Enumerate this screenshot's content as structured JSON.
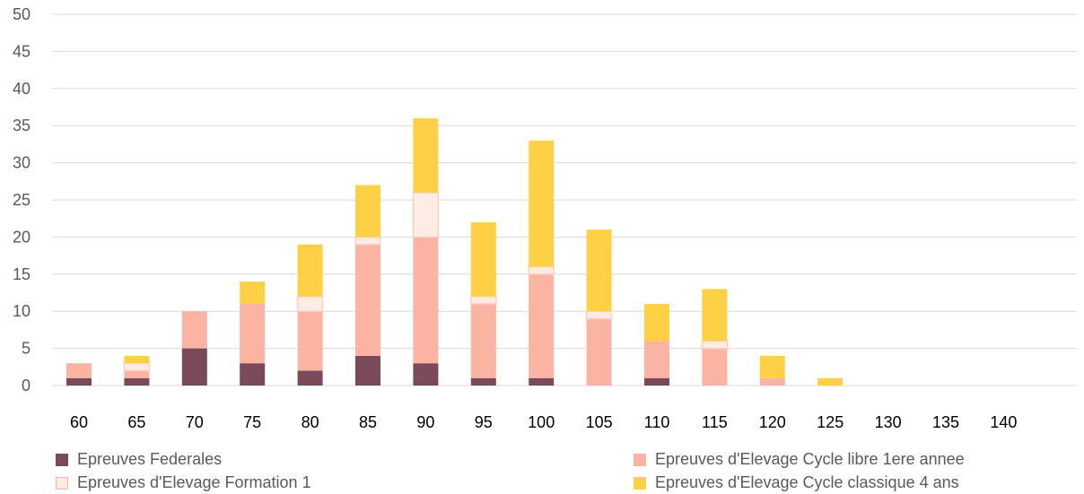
{
  "chart_data": {
    "type": "bar",
    "stacked": true,
    "categories": [
      "60",
      "65",
      "70",
      "75",
      "80",
      "85",
      "90",
      "95",
      "100",
      "105",
      "110",
      "115",
      "120",
      "125",
      "130",
      "135",
      "140"
    ],
    "ylim": [
      0,
      50
    ],
    "yticks": [
      0,
      5,
      10,
      15,
      20,
      25,
      30,
      35,
      40,
      45,
      50
    ],
    "grid": true,
    "legend_position": "bottom",
    "series": [
      {
        "name": "Epreuves Federales",
        "color": "#7b4a5a",
        "values": [
          1,
          1,
          5,
          3,
          2,
          4,
          3,
          1,
          1,
          0,
          1,
          0,
          0,
          0,
          0,
          0,
          0
        ]
      },
      {
        "name": "Epreuves d'Elevage Cycle libre 1ere annee",
        "color": "#fbb4a4",
        "values": [
          2,
          1,
          5,
          8,
          8,
          15,
          17,
          10,
          14,
          9,
          5,
          5,
          1,
          0,
          0,
          0,
          0
        ]
      },
      {
        "name": "Epreuves d'Elevage Formation 1",
        "color": "#fdebe4",
        "border": "#fcd0bf",
        "values": [
          0,
          1,
          0,
          0,
          2,
          1,
          6,
          1,
          1,
          1,
          0,
          1,
          0,
          0,
          0,
          0,
          0
        ]
      },
      {
        "name": "Epreuves d'Elevage Cycle classique 4 ans",
        "color": "#fdd045",
        "values": [
          0,
          1,
          0,
          3,
          7,
          7,
          10,
          10,
          17,
          11,
          5,
          7,
          3,
          1,
          0,
          0,
          0
        ]
      }
    ]
  },
  "colors": {
    "grid": "#d9d9d9",
    "axis_text": "#595959"
  }
}
